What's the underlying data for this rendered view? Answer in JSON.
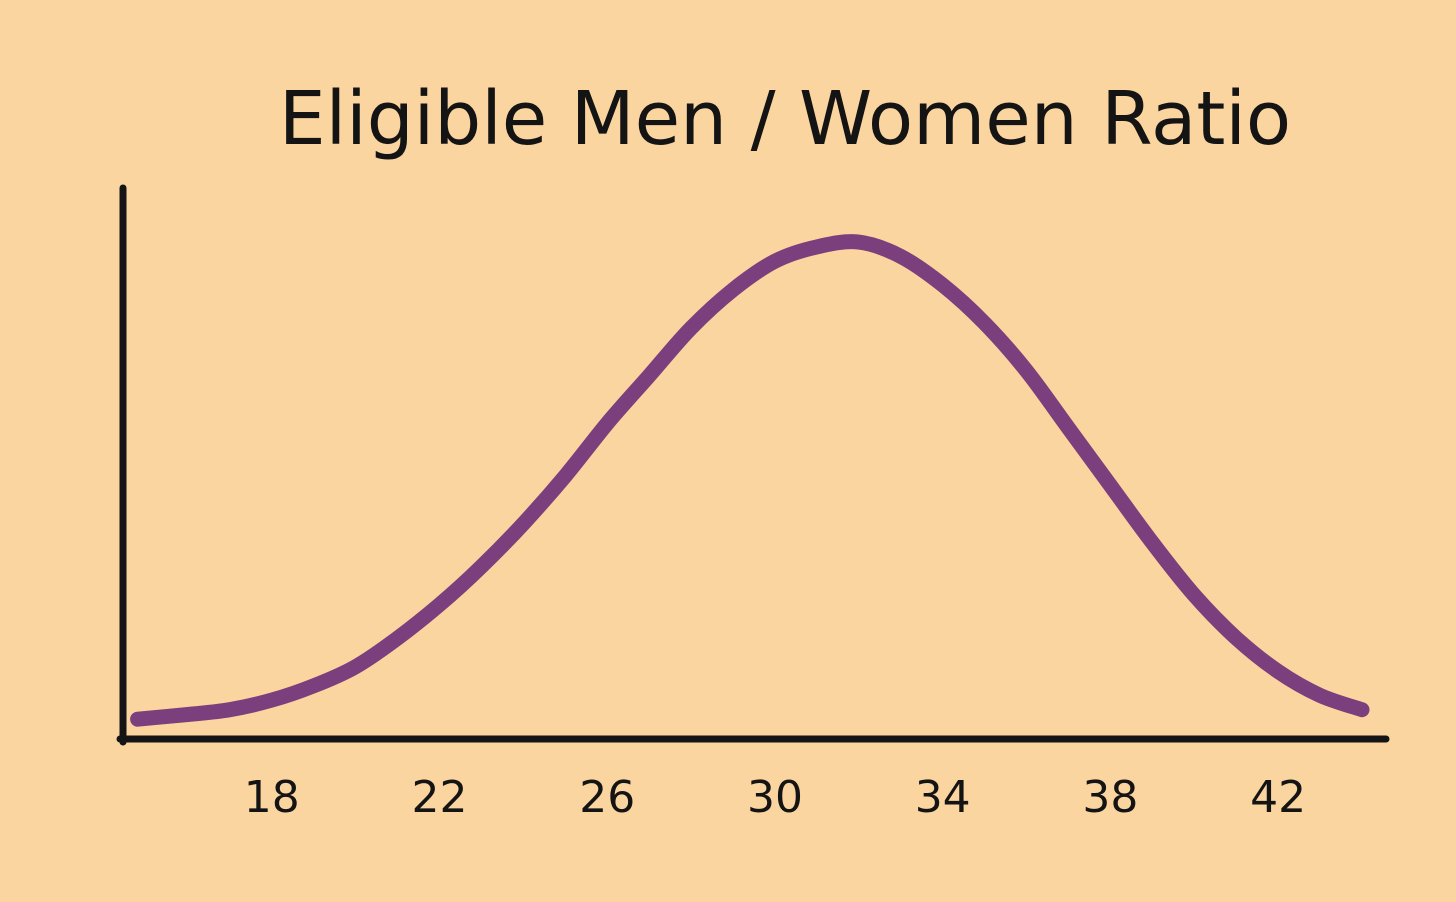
{
  "background_color": "#fbd59f",
  "axis_color": "#141414",
  "chart_data": {
    "type": "line",
    "title": "Eligible Men / Women Ratio",
    "xlabel": "",
    "ylabel": "",
    "x_ticks": [
      18,
      22,
      26,
      30,
      34,
      38,
      42
    ],
    "xlim": [
      14.5,
      44.5
    ],
    "ylim": [
      0,
      1.05
    ],
    "grid": false,
    "series": [
      {
        "color": "#7b3f7e",
        "x": [
          14.8,
          16,
          17,
          18,
          19,
          20,
          21,
          22,
          23,
          24,
          25,
          26,
          27,
          28,
          29,
          30,
          31,
          32,
          33,
          34,
          35,
          36,
          37,
          38,
          39,
          40,
          41,
          42,
          43,
          44
        ],
        "y": [
          0.01,
          0.02,
          0.03,
          0.05,
          0.08,
          0.12,
          0.18,
          0.25,
          0.33,
          0.42,
          0.52,
          0.63,
          0.73,
          0.83,
          0.91,
          0.97,
          1.0,
          1.01,
          0.98,
          0.92,
          0.84,
          0.74,
          0.62,
          0.5,
          0.38,
          0.27,
          0.18,
          0.11,
          0.06,
          0.03
        ]
      }
    ]
  }
}
